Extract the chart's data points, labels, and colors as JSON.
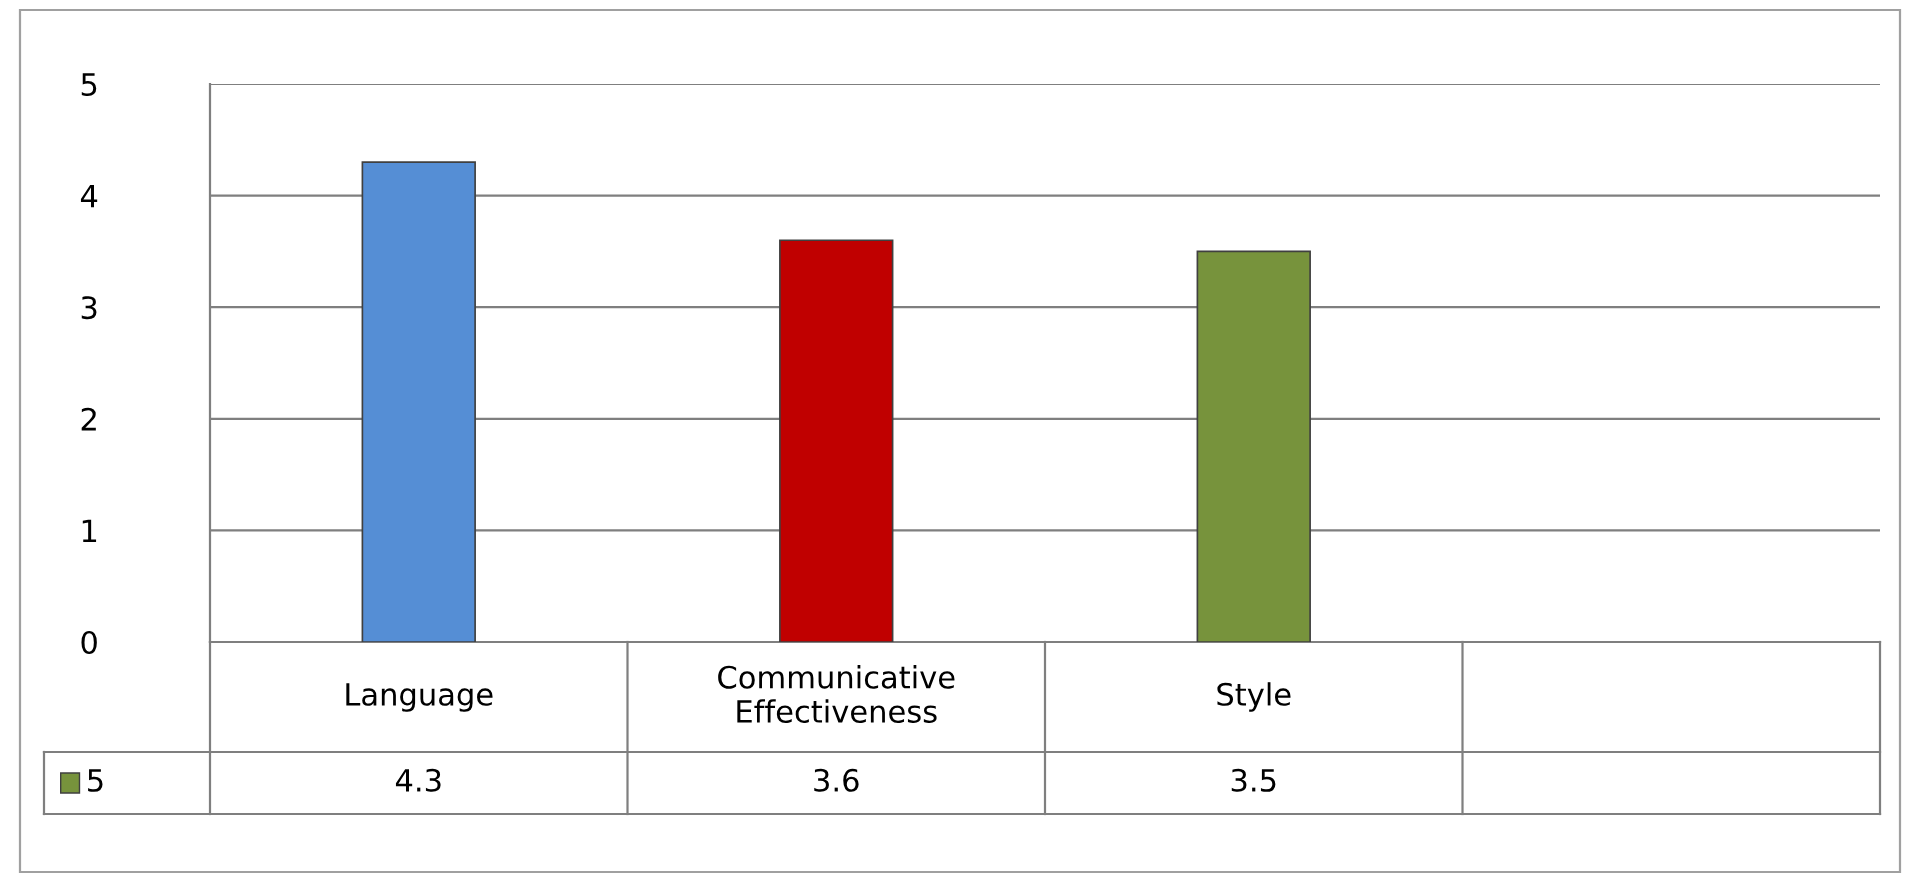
{
  "chart_data": {
    "type": "bar",
    "categories": [
      "Language",
      "Communicative\nEffectiveness",
      "Style",
      null
    ],
    "series": [
      {
        "name": "5",
        "color": "#77933c",
        "colors": [
          "#558ed5",
          "#c00000",
          "#77933c",
          "#77933c"
        ],
        "values": [
          4.3,
          3.6,
          3.5,
          null
        ]
      }
    ],
    "ylim": [
      0,
      5
    ],
    "yticks": [
      0,
      1,
      2,
      3,
      4,
      5
    ],
    "grid": "y",
    "legend": "bottom left",
    "data_labels": true
  }
}
